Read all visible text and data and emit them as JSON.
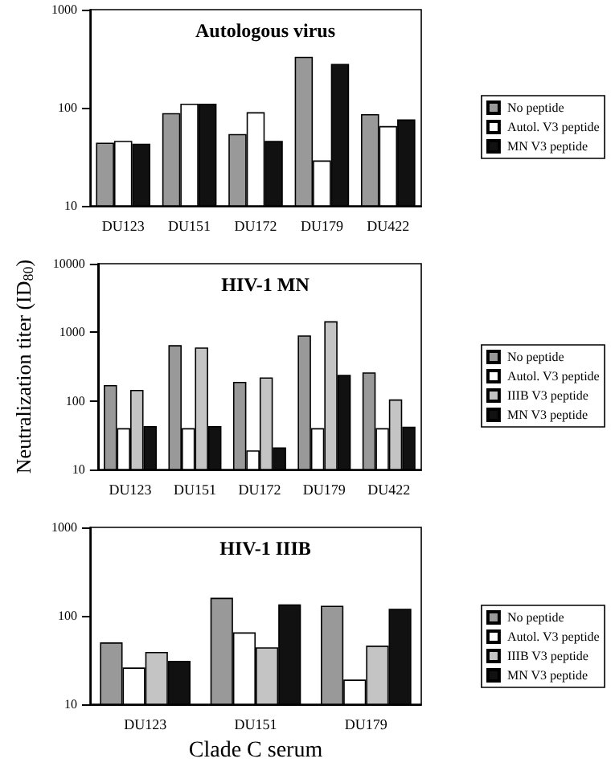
{
  "chart_data": [
    {
      "type": "bar",
      "title": "Autologous virus",
      "categories": [
        "DU123",
        "DU151",
        "DU172",
        "DU179",
        "DU422"
      ],
      "log": true,
      "ylim": [
        10,
        1000
      ],
      "yticks": [
        10,
        100,
        1000
      ],
      "legend": "right",
      "series": [
        {
          "name": "No peptide",
          "color": "#999999",
          "values": [
            44,
            88,
            54,
            330,
            86
          ]
        },
        {
          "name": "Autol. V3 peptide",
          "color": "#ffffff",
          "values": [
            46,
            110,
            90,
            29,
            65
          ]
        },
        {
          "name": "MN V3 peptide",
          "color": "#111111",
          "values": [
            43,
            110,
            46,
            280,
            76
          ]
        }
      ]
    },
    {
      "type": "bar",
      "title": "HIV-1 MN",
      "ylabel": "Neutralization titer (ID$_{80}$)",
      "categories": [
        "DU123",
        "DU151",
        "DU172",
        "DU179",
        "DU422"
      ],
      "log": true,
      "ylim": [
        10,
        10000
      ],
      "yticks": [
        10,
        100,
        1000,
        10000
      ],
      "legend": "right",
      "series": [
        {
          "name": "No peptide",
          "color": "#999999",
          "values": [
            170,
            650,
            190,
            900,
            260
          ]
        },
        {
          "name": "Autol. V3 peptide",
          "color": "#ffffff",
          "values": [
            40,
            40,
            19,
            40,
            40
          ]
        },
        {
          "name": "IIIB V3 peptide",
          "color": "#c4c4c4",
          "values": [
            145,
            600,
            220,
            1450,
            105
          ]
        },
        {
          "name": "MN V3 peptide",
          "color": "#111111",
          "values": [
            43,
            43,
            21,
            240,
            42
          ]
        }
      ]
    },
    {
      "type": "bar",
      "title": "HIV-1 IIIB",
      "xlabel": "Clade C serum",
      "categories": [
        "DU123",
        "DU151",
        "DU179"
      ],
      "log": true,
      "ylim": [
        10,
        1000
      ],
      "yticks": [
        10,
        100,
        1000
      ],
      "legend": "right",
      "series": [
        {
          "name": "No peptide",
          "color": "#999999",
          "values": [
            50,
            160,
            130
          ]
        },
        {
          "name": "Autol. V3 peptide",
          "color": "#ffffff",
          "values": [
            26,
            65,
            19
          ]
        },
        {
          "name": "IIIB V3 peptide",
          "color": "#c4c4c4",
          "values": [
            39,
            44,
            46
          ]
        },
        {
          "name": "MN V3 peptide",
          "color": "#111111",
          "values": [
            31,
            135,
            120
          ]
        }
      ]
    }
  ]
}
